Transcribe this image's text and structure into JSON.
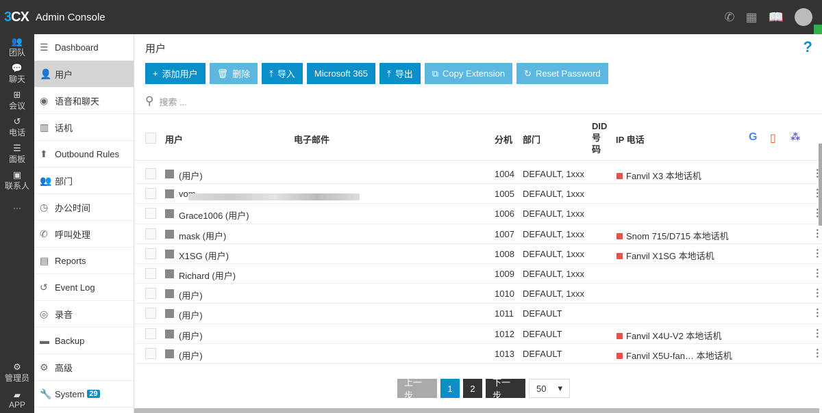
{
  "app": {
    "logo": "3CX",
    "title": "Admin Console"
  },
  "rail": [
    {
      "icon": "team-icon",
      "label": "团队"
    },
    {
      "icon": "chat-icon",
      "label": "聊天"
    },
    {
      "icon": "meeting-icon",
      "label": "会议"
    },
    {
      "icon": "history-icon",
      "label": "电话"
    },
    {
      "icon": "panel-icon",
      "label": "面板"
    },
    {
      "icon": "contacts-icon",
      "label": "联系人"
    },
    {
      "icon": "more-icon",
      "label": "···"
    }
  ],
  "rail_bottom": [
    {
      "icon": "gear-icon",
      "label": "管理员"
    },
    {
      "icon": "app-icon",
      "label": "APP"
    }
  ],
  "nav": [
    {
      "label": "Dashboard",
      "icon": "dashboard-icon"
    },
    {
      "label": "用户",
      "icon": "user-icon",
      "active": true
    },
    {
      "label": "语音和聊天",
      "icon": "globe-icon"
    },
    {
      "label": "话机",
      "icon": "phone-device-icon"
    },
    {
      "label": "Outbound Rules",
      "icon": "arrow-up-icon"
    },
    {
      "label": "部门",
      "icon": "group-icon"
    },
    {
      "label": "办公时间",
      "icon": "clock-icon"
    },
    {
      "label": "呼叫处理",
      "icon": "phone-icon"
    },
    {
      "label": "Reports",
      "icon": "report-icon"
    },
    {
      "label": "Event Log",
      "icon": "history-icon"
    },
    {
      "label": "录音",
      "icon": "record-icon"
    },
    {
      "label": "Backup",
      "icon": "archive-icon"
    },
    {
      "label": "高级",
      "icon": "gear-icon"
    },
    {
      "label": "System",
      "icon": "wrench-icon",
      "badge": "29"
    }
  ],
  "page": {
    "title": "用户",
    "help": "?"
  },
  "buttons": [
    {
      "label": "添加用户",
      "icon": "+",
      "disabled": false
    },
    {
      "label": "删除",
      "icon": "🗑",
      "disabled": true
    },
    {
      "label": "导入",
      "icon": "⤒",
      "disabled": false
    },
    {
      "label": "Microsoft 365",
      "icon": "",
      "disabled": false
    },
    {
      "label": "导出",
      "icon": "⤒",
      "disabled": false
    },
    {
      "label": "Copy Extension",
      "icon": "⧉",
      "disabled": true
    },
    {
      "label": "Reset Password",
      "icon": "↻",
      "disabled": true
    }
  ],
  "search": {
    "placeholder": "搜索 ..."
  },
  "columns": {
    "user": "用户",
    "email": "电子邮件",
    "ext": "分机",
    "dept": "部门",
    "did": "DID 号 码",
    "did1": "DID",
    "did2": "号",
    "did3": "码",
    "ipphone": "IP 电话"
  },
  "integration_icons": [
    "google-icon",
    "office-icon",
    "teams-icon"
  ],
  "rows": [
    {
      "user": "(用户)",
      "ext": "1004",
      "dept": "DEFAULT, 1xxx",
      "phone": "Fanvil X3 本地话机"
    },
    {
      "user": "vo",
      "user_end": "m",
      "ext": "1005",
      "dept": "DEFAULT, 1xxx",
      "phone": ""
    },
    {
      "user": "Grace1006 (用户)",
      "ext": "1006",
      "dept": "DEFAULT, 1xxx",
      "phone": ""
    },
    {
      "user": "mask (用户)",
      "ext": "1007",
      "dept": "DEFAULT, 1xxx",
      "phone": "Snom 715/D715 本地话机"
    },
    {
      "user": "X1SG (用户)",
      "ext": "1008",
      "dept": "DEFAULT, 1xxx",
      "phone": "Fanvil X1SG 本地话机"
    },
    {
      "user": "Richard (用户)",
      "ext": "1009",
      "dept": "DEFAULT, 1xxx",
      "phone": ""
    },
    {
      "user": "(用户)",
      "ext": "1010",
      "dept": "DEFAULT, 1xxx",
      "phone": ""
    },
    {
      "user": "(用户)",
      "ext": "1011",
      "dept": "DEFAULT",
      "phone": ""
    },
    {
      "user": "(用户)",
      "ext": "1012",
      "dept": "DEFAULT",
      "phone": "Fanvil X4U-V2 本地话机"
    },
    {
      "user": "(用户)",
      "ext": "1013",
      "dept": "DEFAULT",
      "phone": "Fanvil X5U-fan… 本地话机"
    }
  ],
  "pagination": {
    "prev": "上一步",
    "pages": [
      "1",
      "2"
    ],
    "current": "1",
    "next": "下一步",
    "page_size": "50"
  }
}
